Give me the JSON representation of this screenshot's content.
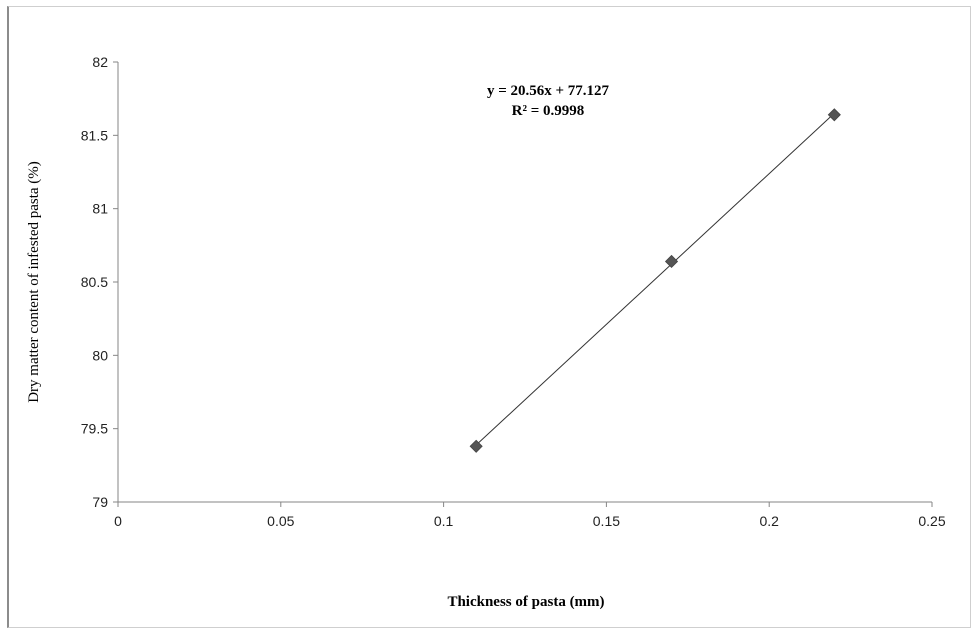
{
  "chart_data": {
    "type": "scatter",
    "title": "",
    "xlabel": "Thickness of  pasta (mm)",
    "ylabel": "Dry matter content of infested pasta (%)",
    "xlim": [
      0,
      0.25
    ],
    "ylim": [
      79,
      82
    ],
    "x_ticks": [
      "0",
      "0.05",
      "0.1",
      "0.15",
      "0.2",
      "0.25"
    ],
    "y_ticks": [
      "79",
      "79.5",
      "80",
      "80.5",
      "81",
      "81.5",
      "82"
    ],
    "grid": false,
    "legend": "none",
    "series": [
      {
        "x": [
          0.11,
          0.17,
          0.22
        ],
        "y": [
          79.38,
          80.64,
          81.64
        ],
        "marker": "diamond",
        "color": "#555555"
      }
    ],
    "trendline": {
      "type": "linear",
      "slope": 20.56,
      "intercept": 77.127,
      "x_range": [
        0.11,
        0.22
      ],
      "color": "#333333"
    },
    "annotations": {
      "equation": "y = 20.56x + 77.127",
      "r_squared": "R² = 0.9998"
    }
  }
}
